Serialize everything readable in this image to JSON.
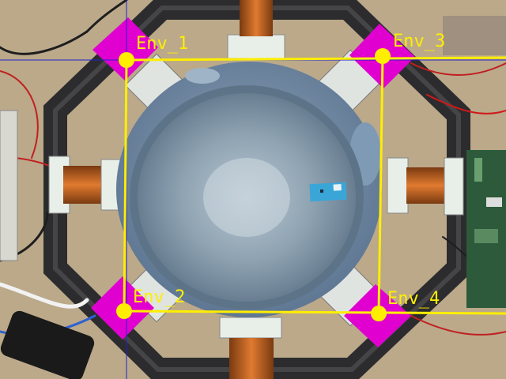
{
  "overlay": {
    "markers": [
      {
        "label": "Env_1"
      },
      {
        "label": "Env_2"
      },
      {
        "label": "Env_3"
      },
      {
        "label": "Env_4"
      }
    ],
    "colors": {
      "marker_dot": "#ffee00",
      "connector": "#ffee00",
      "label_text": "#ffee00",
      "crosshair": "#2222cc",
      "corner_pad": "#e000d0"
    }
  },
  "scene": {
    "description_icons": [
      "wash-basin",
      "electromagnet-coil",
      "octagonal-frame",
      "wiring",
      "circuit-board",
      "test-tag"
    ]
  }
}
